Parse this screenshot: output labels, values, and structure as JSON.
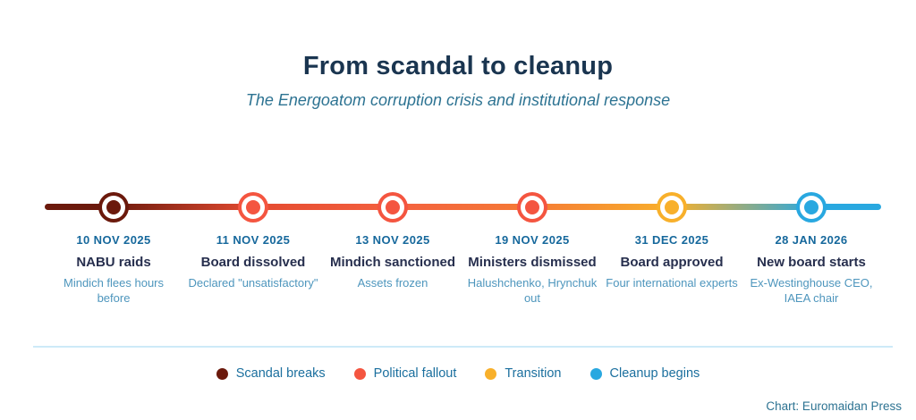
{
  "header": {
    "title": "From scandal to cleanup",
    "subtitle": "The Energoatom corruption crisis and institutional response"
  },
  "chart_data": {
    "type": "timeline",
    "orientation": "horizontal",
    "title": "From scandal to cleanup",
    "subtitle": "The Energoatom corruption crisis and institutional response",
    "events": [
      {
        "date": "10 NOV 2025",
        "label": "NABU raids",
        "detail": "Mindich flees hours before",
        "category": "Scandal breaks",
        "color": "#6b190c"
      },
      {
        "date": "11 NOV 2025",
        "label": "Board dissolved",
        "detail": "Declared \"unsatisfactory\"",
        "category": "Political fallout",
        "color": "#f45540"
      },
      {
        "date": "13 NOV 2025",
        "label": "Mindich sanctioned",
        "detail": "Assets frozen",
        "category": "Political fallout",
        "color": "#f45540"
      },
      {
        "date": "19 NOV 2025",
        "label": "Ministers dismissed",
        "detail": "Halushchenko, Hrynchuk out",
        "category": "Political fallout",
        "color": "#f45540"
      },
      {
        "date": "31 DEC 2025",
        "label": "Board approved",
        "detail": "Four international experts",
        "category": "Transition",
        "color": "#f8b02b"
      },
      {
        "date": "28 JAN 2026",
        "label": "New board starts",
        "detail": "Ex-Westinghouse CEO, IAEA chair",
        "category": "Cleanup begins",
        "color": "#29a8e0"
      }
    ],
    "legend": [
      {
        "label": "Scandal breaks",
        "color": "#6b190c"
      },
      {
        "label": "Political fallout",
        "color": "#f45540"
      },
      {
        "label": "Transition",
        "color": "#f8b02b"
      },
      {
        "label": "Cleanup begins",
        "color": "#29a8e0"
      }
    ],
    "line_gradient": [
      "#6b190c",
      "#e44a30",
      "#f4613f",
      "#f57a35",
      "#f8b02b",
      "#29a8e0"
    ],
    "credit": "Chart: Euromaidan Press"
  },
  "footer": {
    "credit": "Chart: Euromaidan Press"
  }
}
